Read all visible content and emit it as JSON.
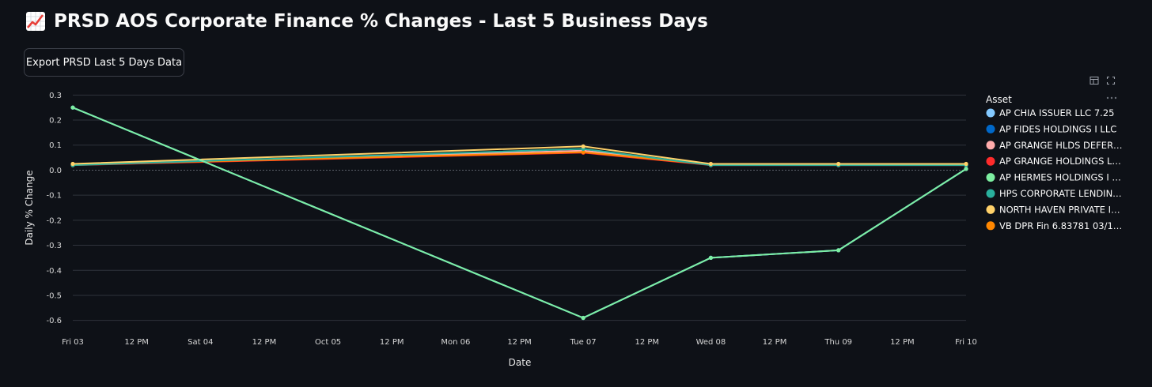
{
  "page": {
    "title": "PRSD AOS Corporate Finance % Changes - Last 5 Business Days",
    "title_icon": "chart-increasing-icon",
    "export_button_label": "Export PRSD Last 5 Days Data",
    "toolbar": {
      "icons": [
        "table-icon",
        "fullscreen-icon",
        "more-options-icon"
      ]
    },
    "colors": {
      "background": "#0e1117",
      "grid": "#2f333b",
      "text": "#fafafa"
    }
  },
  "chart_data": {
    "type": "line",
    "xlabel": "Date",
    "ylabel": "Daily % Change",
    "ylim": [
      -0.62,
      0.32
    ],
    "xlim": [
      "2025-10-03T00:00",
      "2025-10-10T00:00"
    ],
    "x_ticks": [
      {
        "t": "2025-10-03T00:00",
        "label": "Fri 03"
      },
      {
        "t": "2025-10-03T12:00",
        "label": "12 PM"
      },
      {
        "t": "2025-10-04T00:00",
        "label": "Sat 04"
      },
      {
        "t": "2025-10-04T12:00",
        "label": "12 PM"
      },
      {
        "t": "2025-10-05T00:00",
        "label": "Oct 05"
      },
      {
        "t": "2025-10-05T12:00",
        "label": "12 PM"
      },
      {
        "t": "2025-10-06T00:00",
        "label": "Mon 06"
      },
      {
        "t": "2025-10-06T12:00",
        "label": "12 PM"
      },
      {
        "t": "2025-10-07T00:00",
        "label": "Tue 07"
      },
      {
        "t": "2025-10-07T12:00",
        "label": "12 PM"
      },
      {
        "t": "2025-10-08T00:00",
        "label": "Wed 08"
      },
      {
        "t": "2025-10-08T12:00",
        "label": "12 PM"
      },
      {
        "t": "2025-10-09T00:00",
        "label": "Thu 09"
      },
      {
        "t": "2025-10-09T12:00",
        "label": "12 PM"
      },
      {
        "t": "2025-10-10T00:00",
        "label": "Fri 10"
      }
    ],
    "y_ticks": [
      0.3,
      0.2,
      0.1,
      0.0,
      -0.1,
      -0.2,
      -0.3,
      -0.4,
      -0.5,
      -0.6
    ],
    "y_tick_labels": [
      "0.3",
      "0.2",
      "0.1",
      "0.0",
      "-0.1",
      "-0.2",
      "-0.3",
      "-0.4",
      "-0.5",
      "-0.6"
    ],
    "grid": true,
    "zero_line": "dotted",
    "legend_title": "Asset",
    "legend_position": "right",
    "x": [
      "2025-10-03",
      "2025-10-07",
      "2025-10-08",
      "2025-10-09",
      "2025-10-10"
    ],
    "series": [
      {
        "name": "AP CHIA ISSUER LLC 7.25",
        "color": "#83c9ff",
        "values": [
          0.25,
          -0.59,
          -0.35,
          -0.32,
          0.005
        ]
      },
      {
        "name": "AP FIDES HOLDINGS I LLC",
        "color": "#0068c9",
        "values": [
          0.25,
          -0.59,
          -0.35,
          -0.32,
          0.005
        ]
      },
      {
        "name": "AP GRANGE HLDS DEFER…",
        "color": "#ffabab",
        "values": [
          0.022,
          0.078,
          0.022,
          0.022,
          0.022
        ]
      },
      {
        "name": "AP GRANGE HOLDINGS L…",
        "color": "#ff2b2b",
        "values": [
          0.02,
          0.07,
          0.02,
          0.02,
          0.02
        ]
      },
      {
        "name": "AP HERMES HOLDINGS I …",
        "color": "#7defa1",
        "values": [
          0.25,
          -0.59,
          -0.35,
          -0.32,
          0.005
        ]
      },
      {
        "name": "HPS CORPORATE LENDIN…",
        "color": "#29b09d",
        "values": [
          0.02,
          0.085,
          0.02,
          0.02,
          0.02
        ]
      },
      {
        "name": "NORTH HAVEN PRIVATE I…",
        "color": "#ffd16a",
        "values": [
          0.025,
          0.095,
          0.025,
          0.025,
          0.025
        ]
      },
      {
        "name": "VB DPR Fin 6.83781 03/1…",
        "color": "#ff8700",
        "values": [
          0.022,
          0.072,
          0.022,
          0.022,
          0.022
        ]
      }
    ]
  }
}
